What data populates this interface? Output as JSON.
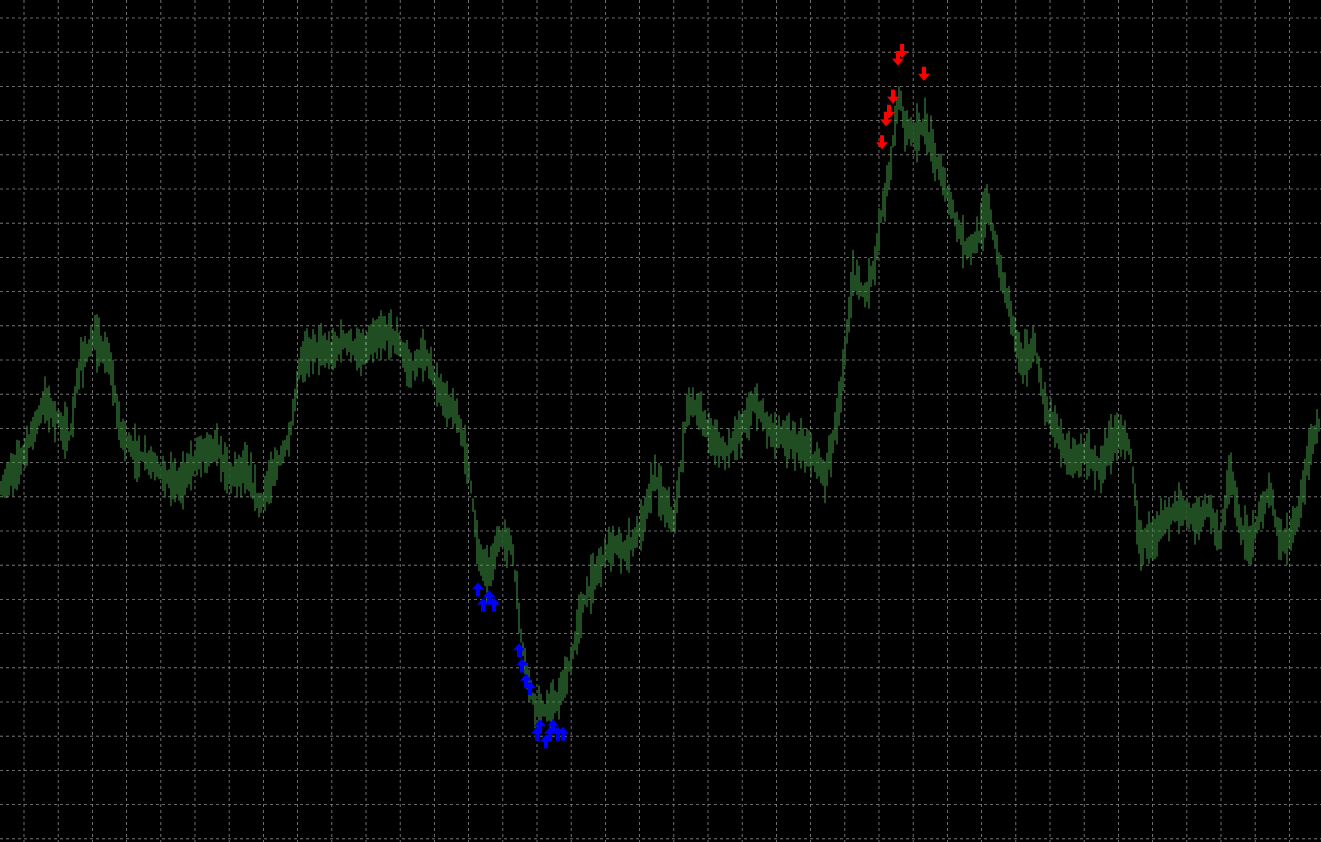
{
  "chart_data": {
    "type": "bar",
    "subtype": "ohlc-price-bars",
    "title": "",
    "xlabel": "",
    "ylabel": "",
    "grid": true,
    "ylim": [
      0,
      100
    ],
    "colors": {
      "background": "#000000",
      "grid": "#8a8a8a",
      "bars": "#3f9a43",
      "buy_arrow": "#0000ff",
      "sell_arrow": "#ff0000"
    },
    "close_path": [
      [
        0,
        38
      ],
      [
        10,
        40
      ],
      [
        20,
        42
      ],
      [
        30,
        45
      ],
      [
        45,
        50
      ],
      [
        60,
        47
      ],
      [
        70,
        45
      ],
      [
        80,
        55
      ],
      [
        95,
        58
      ],
      [
        110,
        55
      ],
      [
        120,
        46
      ],
      [
        135,
        43
      ],
      [
        150,
        42
      ],
      [
        165,
        40
      ],
      [
        180,
        39
      ],
      [
        200,
        43
      ],
      [
        215,
        44
      ],
      [
        230,
        40
      ],
      [
        245,
        41
      ],
      [
        260,
        36
      ],
      [
        275,
        41
      ],
      [
        290,
        45
      ],
      [
        300,
        55
      ],
      [
        315,
        57
      ],
      [
        330,
        56
      ],
      [
        345,
        58
      ],
      [
        360,
        56
      ],
      [
        375,
        58
      ],
      [
        390,
        59
      ],
      [
        400,
        57
      ],
      [
        410,
        54
      ],
      [
        425,
        56
      ],
      [
        440,
        51
      ],
      [
        460,
        47
      ],
      [
        470,
        40
      ],
      [
        478,
        30
      ],
      [
        488,
        27
      ],
      [
        500,
        32
      ],
      [
        512,
        31
      ],
      [
        520,
        20
      ],
      [
        528,
        13
      ],
      [
        535,
        10
      ],
      [
        548,
        9
      ],
      [
        560,
        11
      ],
      [
        572,
        16
      ],
      [
        580,
        22
      ],
      [
        595,
        27
      ],
      [
        610,
        31
      ],
      [
        625,
        30
      ],
      [
        640,
        33
      ],
      [
        655,
        40
      ],
      [
        665,
        36
      ],
      [
        675,
        34
      ],
      [
        688,
        50
      ],
      [
        700,
        48
      ],
      [
        712,
        45
      ],
      [
        725,
        43
      ],
      [
        740,
        46
      ],
      [
        755,
        50
      ],
      [
        770,
        46
      ],
      [
        785,
        45
      ],
      [
        800,
        44
      ],
      [
        815,
        42
      ],
      [
        825,
        40
      ],
      [
        835,
        46
      ],
      [
        842,
        52
      ],
      [
        852,
        66
      ],
      [
        865,
        64
      ],
      [
        875,
        68
      ],
      [
        882,
        75
      ],
      [
        890,
        80
      ],
      [
        895,
        87
      ],
      [
        900,
        90
      ],
      [
        905,
        86
      ],
      [
        915,
        85
      ],
      [
        925,
        86
      ],
      [
        935,
        82
      ],
      [
        945,
        78
      ],
      [
        955,
        74
      ],
      [
        965,
        70
      ],
      [
        978,
        71
      ],
      [
        988,
        76
      ],
      [
        1000,
        67
      ],
      [
        1010,
        62
      ],
      [
        1022,
        55
      ],
      [
        1035,
        57
      ],
      [
        1045,
        49
      ],
      [
        1060,
        45
      ],
      [
        1070,
        42
      ],
      [
        1085,
        43
      ],
      [
        1100,
        41
      ],
      [
        1110,
        44
      ],
      [
        1120,
        46
      ],
      [
        1130,
        44
      ],
      [
        1140,
        31
      ],
      [
        1150,
        32
      ],
      [
        1165,
        34
      ],
      [
        1180,
        36
      ],
      [
        1195,
        34
      ],
      [
        1210,
        36
      ],
      [
        1220,
        31
      ],
      [
        1230,
        41
      ],
      [
        1240,
        33
      ],
      [
        1250,
        31
      ],
      [
        1260,
        35
      ],
      [
        1270,
        38
      ],
      [
        1280,
        31
      ],
      [
        1290,
        32
      ],
      [
        1300,
        36
      ],
      [
        1310,
        44
      ],
      [
        1320,
        47
      ]
    ],
    "signals": {
      "buy": [
        [
          478,
          29
        ],
        [
          483,
          27
        ],
        [
          489,
          28
        ],
        [
          494,
          27
        ],
        [
          519,
          21
        ],
        [
          522,
          19
        ],
        [
          526,
          17
        ],
        [
          530,
          16
        ],
        [
          537,
          10
        ],
        [
          540,
          11
        ],
        [
          546,
          9
        ],
        [
          550,
          10
        ],
        [
          553,
          11
        ],
        [
          558,
          10
        ],
        [
          563,
          10
        ]
      ],
      "sell": [
        [
          882,
          80
        ],
        [
          886,
          83
        ],
        [
          889,
          84
        ],
        [
          893,
          86
        ],
        [
          898,
          91
        ],
        [
          902,
          92
        ],
        [
          924,
          89
        ]
      ]
    }
  }
}
